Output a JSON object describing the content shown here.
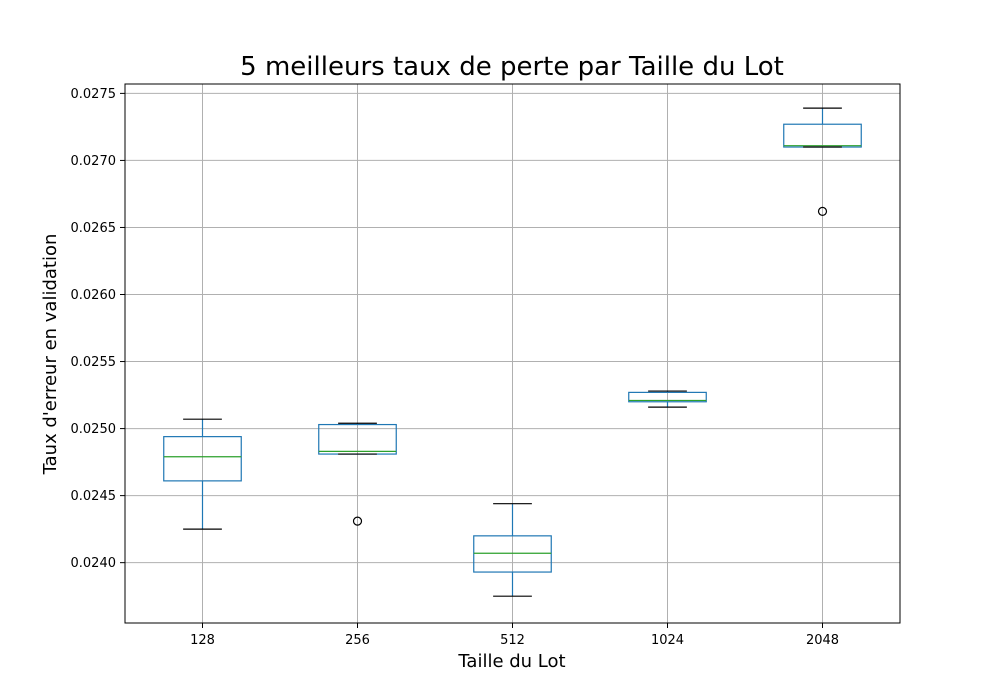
{
  "chart_data": {
    "type": "box",
    "title": "5 meilleurs taux de perte par Taille du Lot",
    "xlabel": "Taille du Lot",
    "ylabel": "Taux d'erreur en validation",
    "categories": [
      "128",
      "256",
      "512",
      "1024",
      "2048"
    ],
    "yticks": [
      "0.0240",
      "0.0245",
      "0.0250",
      "0.0255",
      "0.0260",
      "0.0265",
      "0.0270",
      "0.0275"
    ],
    "ylim": [
      0.02355,
      0.02757
    ],
    "grid": true,
    "boxes": [
      {
        "category": "128",
        "whislo": 0.02425,
        "q1": 0.02461,
        "median": 0.02479,
        "q3": 0.02494,
        "whishi": 0.02507,
        "fliers": []
      },
      {
        "category": "256",
        "whislo": 0.02481,
        "q1": 0.02481,
        "median": 0.02483,
        "q3": 0.02503,
        "whishi": 0.02504,
        "fliers": [
          0.02431
        ]
      },
      {
        "category": "512",
        "whislo": 0.02375,
        "q1": 0.02393,
        "median": 0.02407,
        "q3": 0.0242,
        "whishi": 0.02444,
        "fliers": []
      },
      {
        "category": "1024",
        "whislo": 0.02516,
        "q1": 0.0252,
        "median": 0.02521,
        "q3": 0.02527,
        "whishi": 0.02528,
        "fliers": []
      },
      {
        "category": "2048",
        "whislo": 0.0271,
        "q1": 0.0271,
        "median": 0.02711,
        "q3": 0.02727,
        "whishi": 0.02739,
        "fliers": [
          0.02662
        ]
      }
    ],
    "colors": {
      "box": "#1f77b4",
      "median": "#2ca02c",
      "whisker": "#1f77b4",
      "cap": "#000000",
      "flier": "#000000",
      "grid": "#b0b0b0"
    }
  }
}
